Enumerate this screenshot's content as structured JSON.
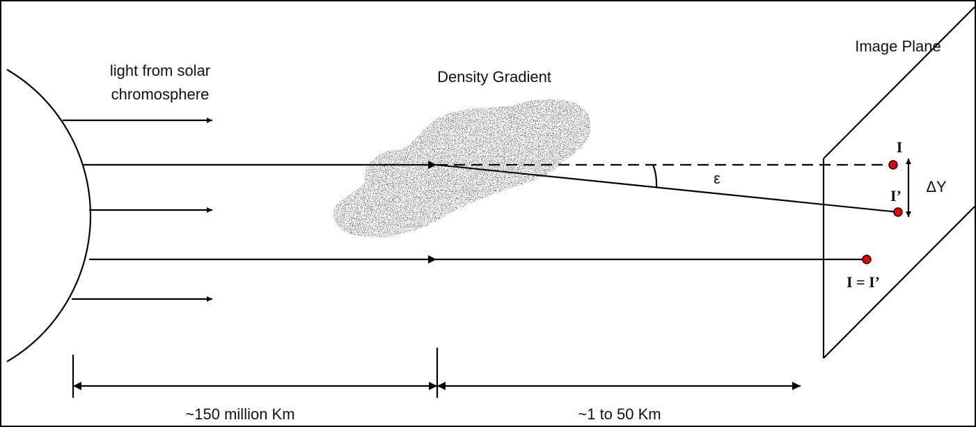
{
  "labels": {
    "light_line1": "light from solar",
    "light_line2": "chromosphere",
    "density": "Density Gradient",
    "image_plane": "Image Plane",
    "epsilon": "ε",
    "delta_y": "ΔY",
    "point_i": "I",
    "point_i_prime": "I’",
    "point_equal": "I = I’",
    "dist_far": "~150 million Km",
    "dist_near": "~1 to 50 Km"
  }
}
